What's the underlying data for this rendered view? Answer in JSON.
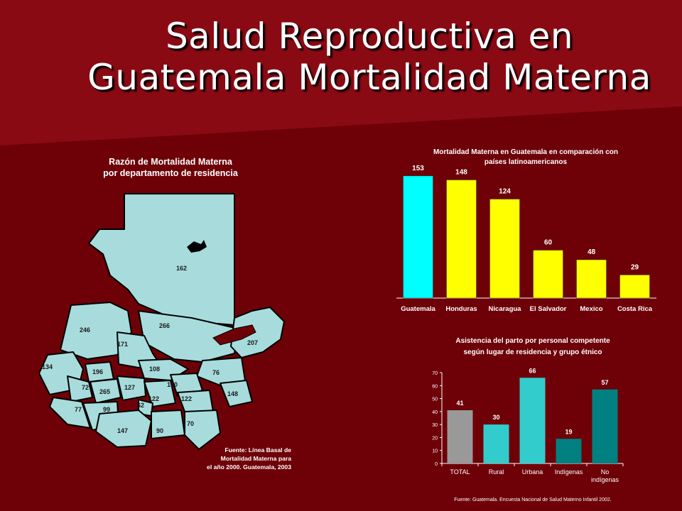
{
  "title": {
    "line1": "Salud Reproductiva en",
    "line2": "Guatemala  Mortalidad Materna"
  },
  "map": {
    "title_line1": "Razón de Mortalidad Materna",
    "title_line2": "por departamento de residencia",
    "source_line1": "Fuente: Línea Basal de",
    "source_line2": "Mortalidad Materna para",
    "source_line3": "el año 2000. Guatemala, 2003",
    "departments": [
      "162",
      "246",
      "266",
      "171",
      "207",
      "134",
      "196",
      "108",
      "76",
      "72",
      "265",
      "127",
      "130",
      "148",
      "122",
      "122",
      "62",
      "77",
      "99",
      "147",
      "90",
      "70"
    ],
    "colors": {
      "fill": "#a8dcdc",
      "stroke": "#000000"
    }
  },
  "chart_data": [
    {
      "type": "bar",
      "title_line1": "Mortalidad Materna en Guatemala en comparación con",
      "title_line2": "países latinoamericanos",
      "categories": [
        "Guatemala",
        "Honduras",
        "Nicaragua",
        "El Salvador",
        "Mexico",
        "Costa Rica"
      ],
      "values": [
        153,
        148,
        124,
        60,
        48,
        29
      ],
      "colors": [
        "#00ffff",
        "#ffff00",
        "#ffff00",
        "#ffff00",
        "#ffff00",
        "#ffff00"
      ],
      "ylim": [
        0,
        160
      ],
      "grid": false,
      "axis_visible": false
    },
    {
      "type": "bar",
      "title_line1": "Asistencia del parto por personal competente",
      "title_line2": "según lugar de residencia y grupo étnico",
      "categories": [
        "TOTAL",
        "Rural",
        "Urbana",
        "Indígenas",
        "No indígenas"
      ],
      "values": [
        41,
        30,
        66,
        19,
        57
      ],
      "colors": [
        "#999999",
        "#33cccc",
        "#33cccc",
        "#008080",
        "#008080"
      ],
      "ylim": [
        0,
        70
      ],
      "yticks": [
        "0",
        "10",
        "20",
        "30",
        "40",
        "50",
        "60",
        "70"
      ],
      "grid": false,
      "source": "Fuente: Guatemala.  Encuesta Nacional de Salud Materno  Infantil 2002."
    }
  ]
}
